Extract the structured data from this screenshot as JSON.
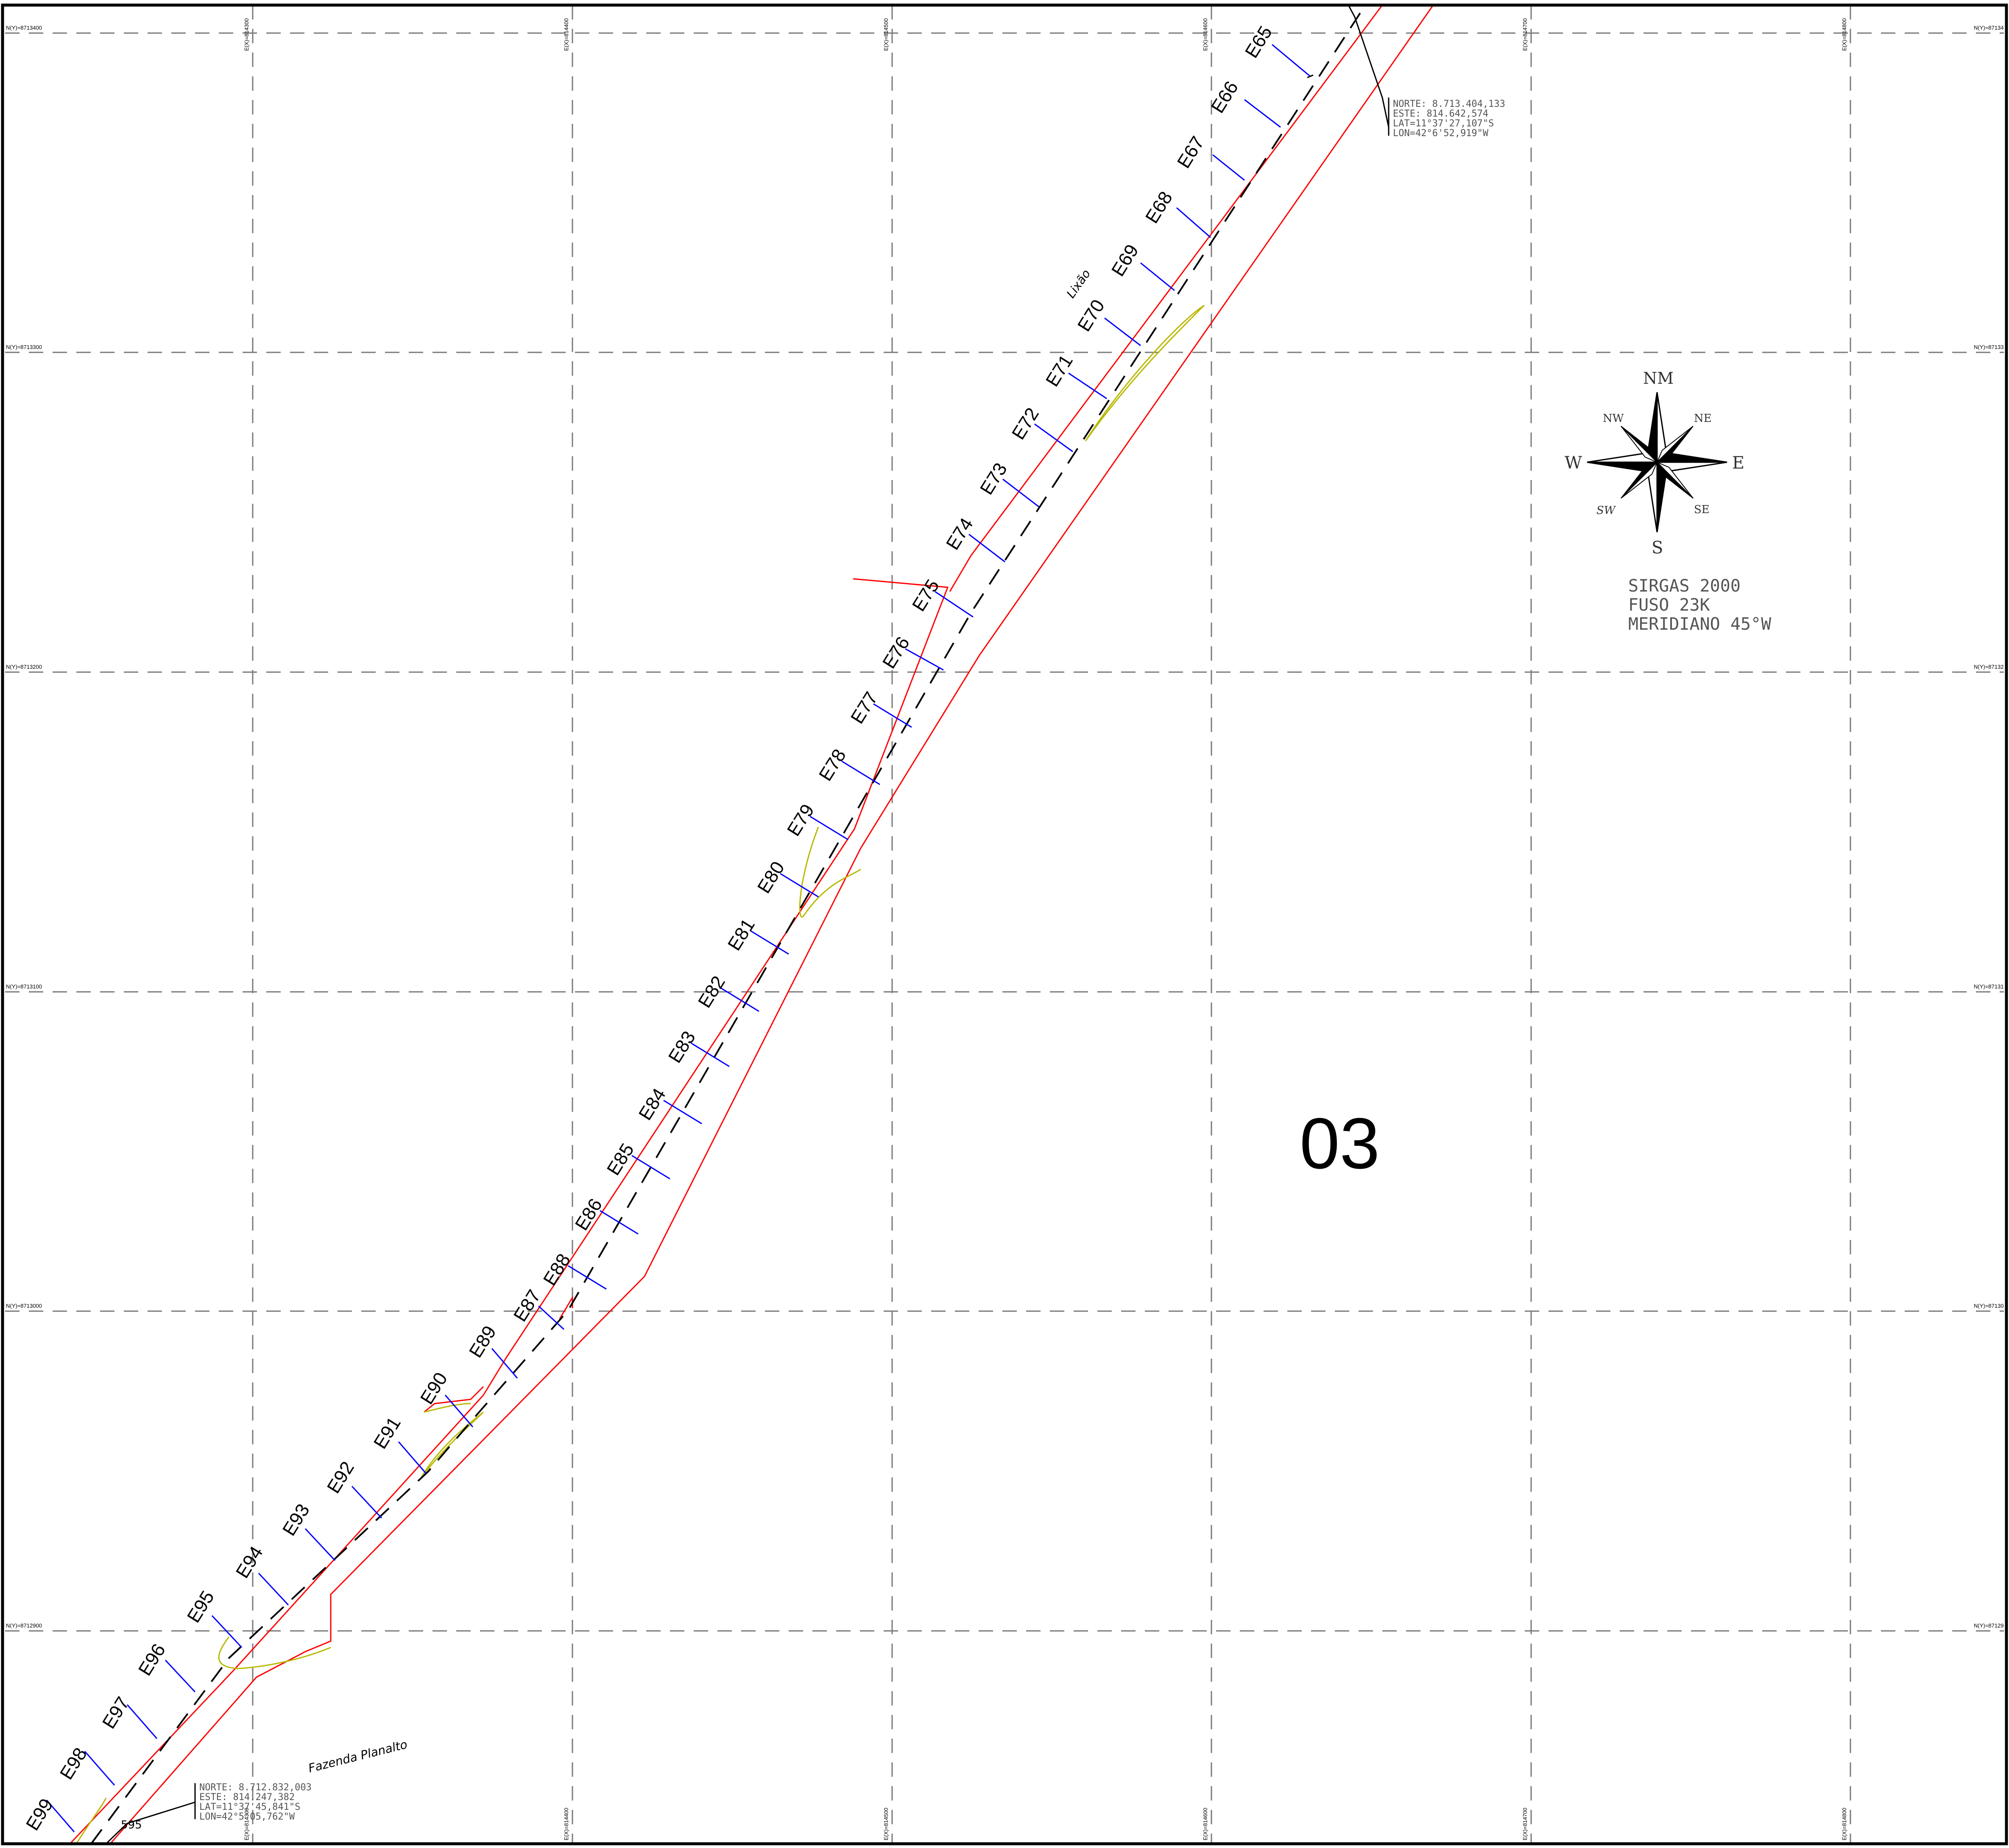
{
  "grid": {
    "easting_labels": [
      "E(X)=814300",
      "E(X)=814400",
      "E(X)=814500",
      "E(X)=814600",
      "E(X)=814700",
      "E(X)=814800"
    ],
    "northing_labels": [
      "N(Y)=8713400",
      "N(Y)=8713300",
      "N(Y)=8713200",
      "N(Y)=8713100",
      "N(Y)=8713000",
      "N(Y)=8712900"
    ],
    "northing_labels_right": [
      "N(Y)=87134",
      "N(Y)=87133",
      "N(Y)=87132",
      "N(Y)=87131",
      "N(Y)=87130",
      "N(Y)=87129"
    ]
  },
  "stations": [
    "E65",
    "E66",
    "E67",
    "E68",
    "E69",
    "E70",
    "E71",
    "E72",
    "E73",
    "E74",
    "E75",
    "E76",
    "E77",
    "E78",
    "E79",
    "E80",
    "E81",
    "E82",
    "E83",
    "E84",
    "E85",
    "E86",
    "E88",
    "E87",
    "E89",
    "E90",
    "E91",
    "E92",
    "E93",
    "E94",
    "E95",
    "E96",
    "E97",
    "E98",
    "E99"
  ],
  "callout_top": {
    "norte": "NORTE: 8.713.404,133",
    "este": "ESTE:   814.642,574",
    "lat": "LAT=11°37'27,107\"S",
    "lon": "LON=42°6'52,919\"W"
  },
  "callout_bottom": {
    "norte": "NORTE: 8.712.832,003",
    "este": "ESTE:   814.247,382",
    "lat": "LAT=11°37'45,841\"S",
    "lon": "LON=42°5'05,762\"W"
  },
  "places": {
    "lixao": "Lixão",
    "fazenda": "Fazenda Planalto",
    "point_label": "595"
  },
  "sheet_number": "03",
  "compass": {
    "nm": "NM",
    "ne": "NE",
    "nw": "NW",
    "e": "E",
    "w": "W",
    "se": "SE",
    "sw": "SW",
    "s": "S"
  },
  "datum": {
    "line1": "SIRGAS 2000",
    "line2": "FUSO 23K",
    "line3": "MERIDIANO 45°W"
  },
  "colors": {
    "boundary": "#ff0000",
    "station_tick": "#0000ff",
    "vegetation": "#b8b800",
    "grid": "#7a7a7a"
  }
}
